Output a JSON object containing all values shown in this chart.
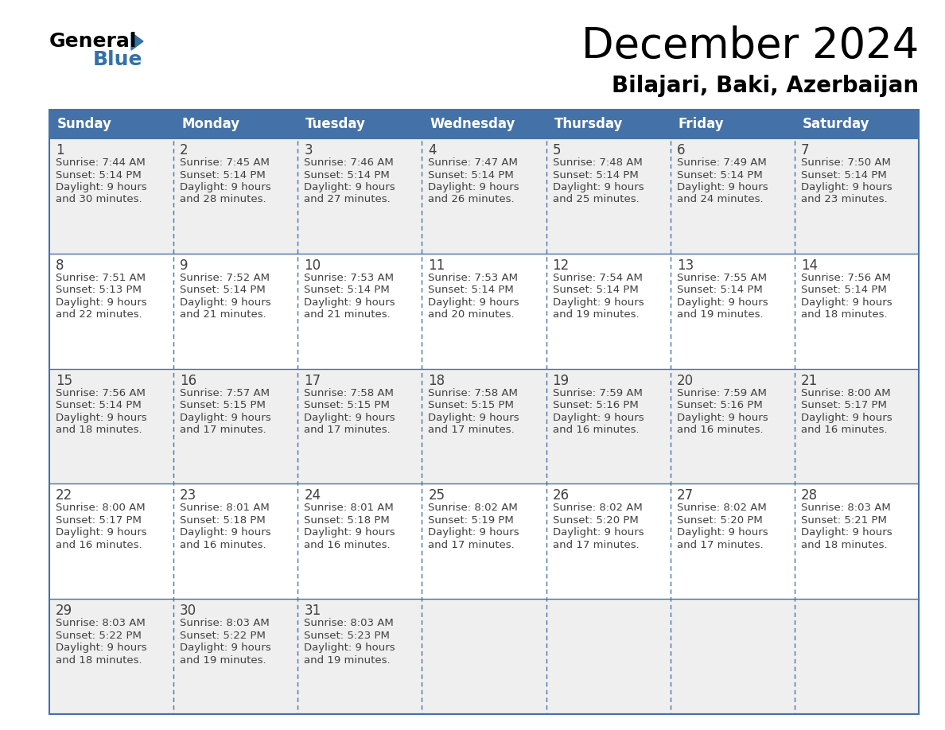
{
  "title": "December 2024",
  "subtitle": "Bilajari, Baki, Azerbaijan",
  "header_bg_color": "#4472A8",
  "header_text_color": "#FFFFFF",
  "cell_bg_even": "#EFEFEF",
  "cell_bg_odd": "#FFFFFF",
  "border_color": "#4472A8",
  "text_color": "#404040",
  "day_headers": [
    "Sunday",
    "Monday",
    "Tuesday",
    "Wednesday",
    "Thursday",
    "Friday",
    "Saturday"
  ],
  "days": [
    {
      "day": 1,
      "col": 0,
      "row": 0,
      "sunrise": "7:44 AM",
      "sunset": "5:14 PM",
      "daylight_hours": 9,
      "daylight_minutes": 30
    },
    {
      "day": 2,
      "col": 1,
      "row": 0,
      "sunrise": "7:45 AM",
      "sunset": "5:14 PM",
      "daylight_hours": 9,
      "daylight_minutes": 28
    },
    {
      "day": 3,
      "col": 2,
      "row": 0,
      "sunrise": "7:46 AM",
      "sunset": "5:14 PM",
      "daylight_hours": 9,
      "daylight_minutes": 27
    },
    {
      "day": 4,
      "col": 3,
      "row": 0,
      "sunrise": "7:47 AM",
      "sunset": "5:14 PM",
      "daylight_hours": 9,
      "daylight_minutes": 26
    },
    {
      "day": 5,
      "col": 4,
      "row": 0,
      "sunrise": "7:48 AM",
      "sunset": "5:14 PM",
      "daylight_hours": 9,
      "daylight_minutes": 25
    },
    {
      "day": 6,
      "col": 5,
      "row": 0,
      "sunrise": "7:49 AM",
      "sunset": "5:14 PM",
      "daylight_hours": 9,
      "daylight_minutes": 24
    },
    {
      "day": 7,
      "col": 6,
      "row": 0,
      "sunrise": "7:50 AM",
      "sunset": "5:14 PM",
      "daylight_hours": 9,
      "daylight_minutes": 23
    },
    {
      "day": 8,
      "col": 0,
      "row": 1,
      "sunrise": "7:51 AM",
      "sunset": "5:13 PM",
      "daylight_hours": 9,
      "daylight_minutes": 22
    },
    {
      "day": 9,
      "col": 1,
      "row": 1,
      "sunrise": "7:52 AM",
      "sunset": "5:14 PM",
      "daylight_hours": 9,
      "daylight_minutes": 21
    },
    {
      "day": 10,
      "col": 2,
      "row": 1,
      "sunrise": "7:53 AM",
      "sunset": "5:14 PM",
      "daylight_hours": 9,
      "daylight_minutes": 21
    },
    {
      "day": 11,
      "col": 3,
      "row": 1,
      "sunrise": "7:53 AM",
      "sunset": "5:14 PM",
      "daylight_hours": 9,
      "daylight_minutes": 20
    },
    {
      "day": 12,
      "col": 4,
      "row": 1,
      "sunrise": "7:54 AM",
      "sunset": "5:14 PM",
      "daylight_hours": 9,
      "daylight_minutes": 19
    },
    {
      "day": 13,
      "col": 5,
      "row": 1,
      "sunrise": "7:55 AM",
      "sunset": "5:14 PM",
      "daylight_hours": 9,
      "daylight_minutes": 19
    },
    {
      "day": 14,
      "col": 6,
      "row": 1,
      "sunrise": "7:56 AM",
      "sunset": "5:14 PM",
      "daylight_hours": 9,
      "daylight_minutes": 18
    },
    {
      "day": 15,
      "col": 0,
      "row": 2,
      "sunrise": "7:56 AM",
      "sunset": "5:14 PM",
      "daylight_hours": 9,
      "daylight_minutes": 18
    },
    {
      "day": 16,
      "col": 1,
      "row": 2,
      "sunrise": "7:57 AM",
      "sunset": "5:15 PM",
      "daylight_hours": 9,
      "daylight_minutes": 17
    },
    {
      "day": 17,
      "col": 2,
      "row": 2,
      "sunrise": "7:58 AM",
      "sunset": "5:15 PM",
      "daylight_hours": 9,
      "daylight_minutes": 17
    },
    {
      "day": 18,
      "col": 3,
      "row": 2,
      "sunrise": "7:58 AM",
      "sunset": "5:15 PM",
      "daylight_hours": 9,
      "daylight_minutes": 17
    },
    {
      "day": 19,
      "col": 4,
      "row": 2,
      "sunrise": "7:59 AM",
      "sunset": "5:16 PM",
      "daylight_hours": 9,
      "daylight_minutes": 16
    },
    {
      "day": 20,
      "col": 5,
      "row": 2,
      "sunrise": "7:59 AM",
      "sunset": "5:16 PM",
      "daylight_hours": 9,
      "daylight_minutes": 16
    },
    {
      "day": 21,
      "col": 6,
      "row": 2,
      "sunrise": "8:00 AM",
      "sunset": "5:17 PM",
      "daylight_hours": 9,
      "daylight_minutes": 16
    },
    {
      "day": 22,
      "col": 0,
      "row": 3,
      "sunrise": "8:00 AM",
      "sunset": "5:17 PM",
      "daylight_hours": 9,
      "daylight_minutes": 16
    },
    {
      "day": 23,
      "col": 1,
      "row": 3,
      "sunrise": "8:01 AM",
      "sunset": "5:18 PM",
      "daylight_hours": 9,
      "daylight_minutes": 16
    },
    {
      "day": 24,
      "col": 2,
      "row": 3,
      "sunrise": "8:01 AM",
      "sunset": "5:18 PM",
      "daylight_hours": 9,
      "daylight_minutes": 16
    },
    {
      "day": 25,
      "col": 3,
      "row": 3,
      "sunrise": "8:02 AM",
      "sunset": "5:19 PM",
      "daylight_hours": 9,
      "daylight_minutes": 17
    },
    {
      "day": 26,
      "col": 4,
      "row": 3,
      "sunrise": "8:02 AM",
      "sunset": "5:20 PM",
      "daylight_hours": 9,
      "daylight_minutes": 17
    },
    {
      "day": 27,
      "col": 5,
      "row": 3,
      "sunrise": "8:02 AM",
      "sunset": "5:20 PM",
      "daylight_hours": 9,
      "daylight_minutes": 17
    },
    {
      "day": 28,
      "col": 6,
      "row": 3,
      "sunrise": "8:03 AM",
      "sunset": "5:21 PM",
      "daylight_hours": 9,
      "daylight_minutes": 18
    },
    {
      "day": 29,
      "col": 0,
      "row": 4,
      "sunrise": "8:03 AM",
      "sunset": "5:22 PM",
      "daylight_hours": 9,
      "daylight_minutes": 18
    },
    {
      "day": 30,
      "col": 1,
      "row": 4,
      "sunrise": "8:03 AM",
      "sunset": "5:22 PM",
      "daylight_hours": 9,
      "daylight_minutes": 19
    },
    {
      "day": 31,
      "col": 2,
      "row": 4,
      "sunrise": "8:03 AM",
      "sunset": "5:23 PM",
      "daylight_hours": 9,
      "daylight_minutes": 19
    }
  ]
}
